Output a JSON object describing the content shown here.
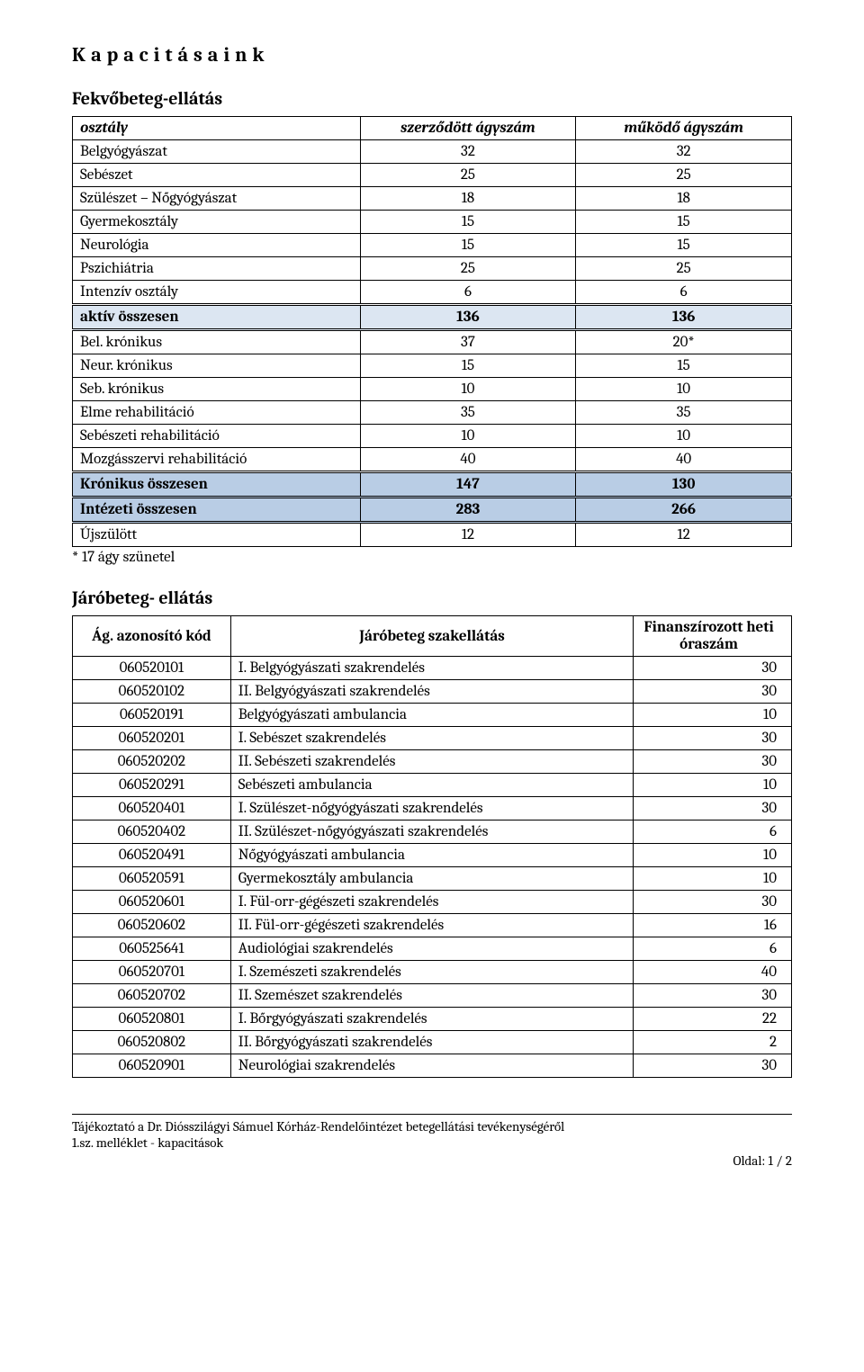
{
  "page_title": "Kapacitásaink",
  "section1": {
    "title": "Fekvőbeteg-ellátás",
    "columns": [
      "osztály",
      "szerződött ágyszám",
      "működő ágyszám"
    ],
    "rows": [
      {
        "label": "Belgyógyászat",
        "a": "32",
        "b": "32",
        "style": "plain"
      },
      {
        "label": "Sebészet",
        "a": "25",
        "b": "25",
        "style": "plain"
      },
      {
        "label": "Szülészet – Nőgyógyászat",
        "a": "18",
        "b": "18",
        "style": "plain"
      },
      {
        "label": "Gyermekosztály",
        "a": "15",
        "b": "15",
        "style": "plain"
      },
      {
        "label": "Neurológia",
        "a": "15",
        "b": "15",
        "style": "plain"
      },
      {
        "label": "Pszichiátria",
        "a": "25",
        "b": "25",
        "style": "plain"
      },
      {
        "label": "Intenzív osztály",
        "a": "6",
        "b": "6",
        "style": "plain"
      },
      {
        "label": "aktív összesen",
        "a": "136",
        "b": "136",
        "style": "hl1 double"
      },
      {
        "label": "Bel. krónikus",
        "a": "37",
        "b": "20*",
        "style": "plain"
      },
      {
        "label": "Neur. krónikus",
        "a": "15",
        "b": "15",
        "style": "plain"
      },
      {
        "label": "Seb. krónikus",
        "a": "10",
        "b": "10",
        "style": "plain"
      },
      {
        "label": "Elme rehabilitáció",
        "a": "35",
        "b": "35",
        "style": "plain"
      },
      {
        "label": "Sebészeti rehabilitáció",
        "a": "10",
        "b": "10",
        "style": "plain"
      },
      {
        "label": "Mozgásszervi  rehabilitáció",
        "a": "40",
        "b": "40",
        "style": "plain"
      },
      {
        "label": "Krónikus összesen",
        "a": "147",
        "b": "130",
        "style": "hl2 double"
      },
      {
        "label": "Intézeti összesen",
        "a": "283",
        "b": "266",
        "style": "hl2 double"
      },
      {
        "label": "Újszülött",
        "a": "12",
        "b": "12",
        "style": "plain"
      }
    ],
    "note": "* 17 ágy szünetel"
  },
  "section2": {
    "title": "Járóbeteg- ellátás",
    "columns": [
      "Ág. azonosító kód",
      "Járóbeteg szakellátás",
      "Finanszírozott heti óraszám"
    ],
    "rows": [
      {
        "code": "060520101",
        "name": "I. Belgyógyászati szakrendelés",
        "hours": "30"
      },
      {
        "code": "060520102",
        "name": "II. Belgyógyászati szakrendelés",
        "hours": "30"
      },
      {
        "code": "060520191",
        "name": "Belgyógyászati ambulancia",
        "hours": "10"
      },
      {
        "code": "060520201",
        "name": "I. Sebészet szakrendelés",
        "hours": "30"
      },
      {
        "code": "060520202",
        "name": "II. Sebészeti szakrendelés",
        "hours": "30"
      },
      {
        "code": "060520291",
        "name": "Sebészeti ambulancia",
        "hours": "10"
      },
      {
        "code": "060520401",
        "name": "I. Szülészet-nőgyógyászati szakrendelés",
        "hours": "30"
      },
      {
        "code": "060520402",
        "name": "II. Szülészet-nőgyógyászati szakrendelés",
        "hours": "6"
      },
      {
        "code": "060520491",
        "name": "Nőgyógyászati ambulancia",
        "hours": "10"
      },
      {
        "code": "060520591",
        "name": "Gyermekosztály ambulancia",
        "hours": "10"
      },
      {
        "code": "060520601",
        "name": "I. Fül-orr-gégészeti szakrendelés",
        "hours": "30"
      },
      {
        "code": "060520602",
        "name": "II. Fül-orr-gégészeti szakrendelés",
        "hours": "16"
      },
      {
        "code": "060525641",
        "name": "Audiológiai szakrendelés",
        "hours": "6"
      },
      {
        "code": "060520701",
        "name": "I. Szemészeti szakrendelés",
        "hours": "40"
      },
      {
        "code": "060520702",
        "name": "II. Szemészet szakrendelés",
        "hours": "30"
      },
      {
        "code": "060520801",
        "name": "I. Bőrgyógyászati szakrendelés",
        "hours": "22"
      },
      {
        "code": "060520802",
        "name": "II. Bőrgyógyászati szakrendelés",
        "hours": "2"
      },
      {
        "code": "060520901",
        "name": "Neurológiai szakrendelés",
        "hours": "30"
      }
    ]
  },
  "footer": {
    "line1": "Tájékoztató a Dr. Diósszilágyi Sámuel Kórház-Rendelőintézet betegellátási tevékenységéről",
    "line2": "1.sz. melléklet - kapacitások",
    "pagenum": "Oldal: 1 / 2"
  },
  "colors": {
    "hl1": "#dce6f2",
    "hl2": "#b9cde5"
  }
}
